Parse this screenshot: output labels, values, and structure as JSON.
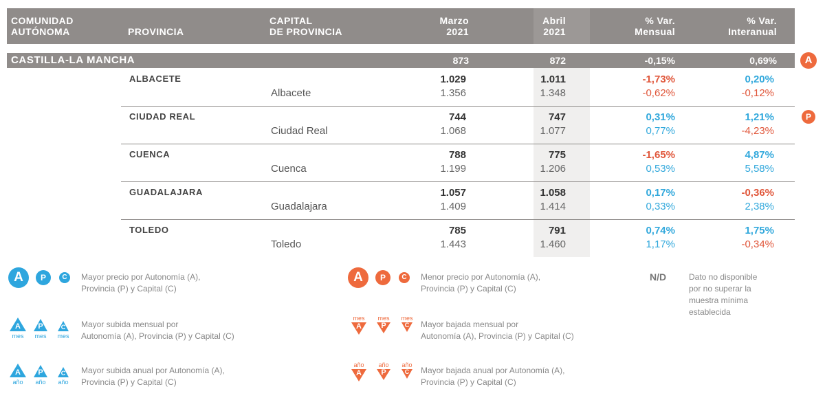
{
  "header": {
    "comunidad": "COMUNIDAD\nAUTÓNOMA",
    "provincia": "PROVINCIA",
    "capital": "CAPITAL\nDE PROVINCIA",
    "marzo": "Marzo\n2021",
    "abril": "Abril\n2021",
    "var_mensual": "% Var.\nMensual",
    "var_interanual": "% Var.\nInteranual"
  },
  "region": {
    "name": "CASTILLA-LA MANCHA",
    "marzo": "873",
    "abril": "872",
    "var_mensual": "-0,15%",
    "var_interanual": "0,69%",
    "badge": "A"
  },
  "rows": [
    {
      "provincia": "ALBACETE",
      "capital": "Albacete",
      "p_marzo": "1.029",
      "p_abril": "1.011",
      "p_vm": "-1,73%",
      "p_vi": "0,20%",
      "c_marzo": "1.356",
      "c_abril": "1.348",
      "c_vm": "-0,62%",
      "c_vi": "-0,12%"
    },
    {
      "provincia": "CIUDAD REAL",
      "capital": "Ciudad Real",
      "p_marzo": "744",
      "p_abril": "747",
      "p_vm": "0,31%",
      "p_vi": "1,21%",
      "c_marzo": "1.068",
      "c_abril": "1.077",
      "c_vm": "0,77%",
      "c_vi": "-4,23%",
      "badge": "P"
    },
    {
      "provincia": "CUENCA",
      "capital": "Cuenca",
      "p_marzo": "788",
      "p_abril": "775",
      "p_vm": "-1,65%",
      "p_vi": "4,87%",
      "c_marzo": "1.199",
      "c_abril": "1.206",
      "c_vm": "0,53%",
      "c_vi": "5,58%"
    },
    {
      "provincia": "GUADALAJARA",
      "capital": "Guadalajara",
      "p_marzo": "1.057",
      "p_abril": "1.058",
      "p_vm": "0,17%",
      "p_vi": "-0,36%",
      "c_marzo": "1.409",
      "c_abril": "1.414",
      "c_vm": "0,33%",
      "c_vi": "2,38%"
    },
    {
      "provincia": "TOLEDO",
      "capital": "Toledo",
      "p_marzo": "785",
      "p_abril": "791",
      "p_vm": "0,74%",
      "p_vi": "1,75%",
      "c_marzo": "1.443",
      "c_abril": "1.460",
      "c_vm": "1,17%",
      "c_vi": "-0,34%"
    }
  ],
  "legend": {
    "letters": [
      "A",
      "P",
      "C"
    ],
    "mayor_precio": "Mayor precio por Autonomía (A),\nProvincia (P) y Capital (C)",
    "menor_precio": "Menor precio por Autonomía (A),\nProvincia (P) y Capital (C)",
    "nd_code": "N/D",
    "nd_text": "Dato no disponible\npor no superar la\nmuestra mínima\nestablecida",
    "mayor_subida_mensual": "Mayor subida mensual por\nAutonomía (A), Provincia (P) y Capital (C)",
    "mayor_bajada_mensual": "Mayor bajada mensual por\nAutonomía (A), Provincia (P) y Capital (C)",
    "mayor_subida_anual": "Mayor subida anual por Autonomía (A),\nProvincia (P) y Capital (C)",
    "mayor_bajada_anual": "Mayor bajada anual por Autonomía (A),\nProvincia (P) y Capital (C)",
    "mes": "mes",
    "ano": "año"
  },
  "colors": {
    "header_bg": "#908c8a",
    "up_blue": "#31a8dc",
    "down_red": "#e0563a",
    "badge_orange": "#ee6a3d"
  }
}
